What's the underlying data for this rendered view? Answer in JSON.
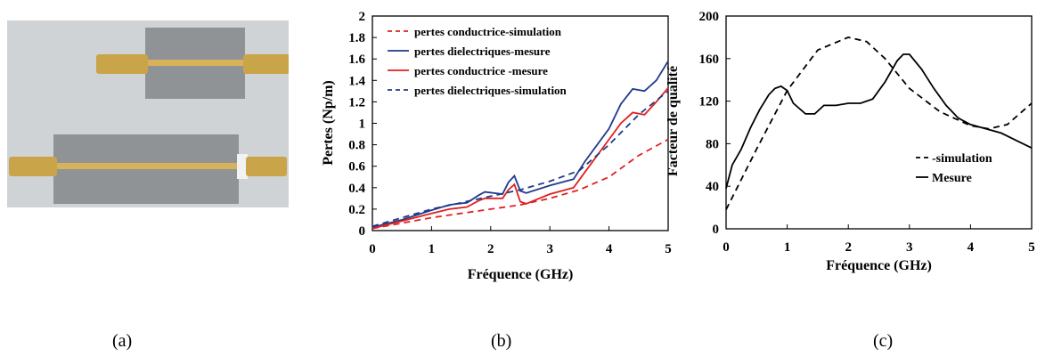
{
  "figure": {
    "captions": [
      "(a)",
      "(b)",
      "(c)"
    ]
  },
  "photo": {
    "description_icon": "transmission-line-prototypes-photo",
    "background_color": "#cfd3d6",
    "substrate_color": "#8f9396",
    "strip_color": "#d8b25a",
    "connector_color": "#c9a449"
  },
  "chart_data": [
    {
      "type": "line",
      "panel": "b",
      "title": "",
      "xlabel": "Fréquence (GHz)",
      "ylabel": "Pertes (Np/m)",
      "xlim": [
        0,
        5
      ],
      "ylim": [
        0,
        2
      ],
      "xticks": [
        "0",
        "1",
        "2",
        "3",
        "4",
        "5"
      ],
      "yticks": [
        "0",
        "0.2",
        "0.4",
        "0.6",
        "0.8",
        "1",
        "1.2",
        "1.4",
        "1.6",
        "1.8",
        "2"
      ],
      "grid": false,
      "legend_position": "top-left",
      "series": [
        {
          "name": "pertes conductrice-simulation",
          "color": "#e02020",
          "dash": "dashed",
          "x": [
            0,
            0.5,
            1,
            1.5,
            2,
            2.5,
            3,
            3.5,
            4,
            4.5,
            5
          ],
          "y": [
            0.02,
            0.07,
            0.12,
            0.16,
            0.2,
            0.24,
            0.3,
            0.38,
            0.5,
            0.7,
            0.85
          ]
        },
        {
          "name": "pertes dielectriques-mesure",
          "color": "#1f3a8a",
          "dash": "solid",
          "x": [
            0,
            0.5,
            1,
            1.3,
            1.6,
            1.8,
            1.9,
            2.2,
            2.3,
            2.4,
            2.5,
            2.6,
            3,
            3.4,
            3.6,
            4,
            4.2,
            4.4,
            4.6,
            4.8,
            5
          ],
          "y": [
            0.03,
            0.1,
            0.19,
            0.24,
            0.26,
            0.33,
            0.36,
            0.34,
            0.45,
            0.51,
            0.37,
            0.35,
            0.42,
            0.48,
            0.65,
            0.95,
            1.18,
            1.32,
            1.3,
            1.4,
            1.58
          ]
        },
        {
          "name": "pertes conductrice -mesure",
          "color": "#e02020",
          "dash": "solid",
          "x": [
            0,
            0.5,
            1,
            1.3,
            1.6,
            1.8,
            1.9,
            2.2,
            2.3,
            2.4,
            2.5,
            2.6,
            3,
            3.4,
            3.6,
            4,
            4.2,
            4.4,
            4.6,
            4.8,
            5
          ],
          "y": [
            0.02,
            0.09,
            0.16,
            0.2,
            0.22,
            0.28,
            0.3,
            0.3,
            0.38,
            0.43,
            0.27,
            0.25,
            0.34,
            0.4,
            0.55,
            0.85,
            1.0,
            1.1,
            1.08,
            1.2,
            1.33
          ]
        },
        {
          "name": "pertes dielectriques-simulation",
          "color": "#1f3a8a",
          "dash": "dashed",
          "x": [
            0,
            0.5,
            1,
            1.5,
            2,
            2.5,
            3,
            3.5,
            4,
            4.5,
            5
          ],
          "y": [
            0.04,
            0.12,
            0.2,
            0.26,
            0.32,
            0.38,
            0.46,
            0.56,
            0.8,
            1.08,
            1.3
          ]
        }
      ]
    },
    {
      "type": "line",
      "panel": "c",
      "title": "",
      "xlabel": "Fréquence (GHz)",
      "ylabel": "Facteur de qualité",
      "xlim": [
        0,
        5
      ],
      "ylim": [
        0,
        200
      ],
      "xticks": [
        "0",
        "1",
        "2",
        "3",
        "4",
        "5"
      ],
      "yticks": [
        "0",
        "40",
        "80",
        "120",
        "160",
        "200"
      ],
      "grid": false,
      "legend_position": "bottom-right",
      "series": [
        {
          "name": "simulation",
          "legend_label": "-simulation",
          "color": "#000000",
          "dash": "dashed",
          "x": [
            0,
            0.5,
            1,
            1.5,
            2,
            2.3,
            2.6,
            3,
            3.5,
            4,
            4.3,
            4.6,
            5
          ],
          "y": [
            18,
            75,
            130,
            168,
            180,
            176,
            160,
            132,
            110,
            97,
            94,
            98,
            118
          ]
        },
        {
          "name": "Mesure",
          "legend_label": "Mesure",
          "color": "#000000",
          "dash": "solid",
          "x": [
            0,
            0.1,
            0.25,
            0.4,
            0.55,
            0.7,
            0.8,
            0.9,
            1.0,
            1.1,
            1.3,
            1.45,
            1.6,
            1.8,
            2.0,
            2.2,
            2.4,
            2.6,
            2.8,
            2.9,
            3.0,
            3.2,
            3.4,
            3.6,
            3.8,
            4.0,
            4.5,
            5.0
          ],
          "y": [
            38,
            60,
            75,
            95,
            112,
            126,
            132,
            134,
            130,
            118,
            108,
            108,
            116,
            116,
            118,
            118,
            122,
            138,
            158,
            164,
            164,
            150,
            132,
            116,
            104,
            98,
            90,
            76
          ]
        }
      ]
    }
  ]
}
